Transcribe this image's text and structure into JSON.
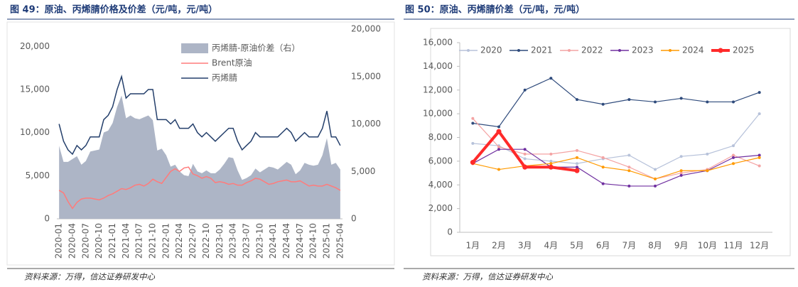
{
  "chart_data": [
    {
      "type": "line",
      "title": "图 49：原油、丙烯腈价格及价差（元/吨，元/吨）",
      "source": "资料来源：万得，信达证券研发中心",
      "categories": [
        "2020-01",
        null,
        null,
        "2020-04",
        null,
        null,
        "2020-07",
        null,
        null,
        "2020-10",
        null,
        null,
        "2021-01",
        null,
        null,
        "2021-04",
        null,
        null,
        "2021-07",
        null,
        null,
        "2021-10",
        null,
        null,
        "2022-01",
        null,
        null,
        "2022-04",
        null,
        null,
        "2022-07",
        null,
        null,
        "2022-10",
        null,
        null,
        "2023-01",
        null,
        null,
        "2023-04",
        null,
        null,
        "2023-07",
        null,
        null,
        "2023-10",
        null,
        null,
        "2024-01",
        null,
        null,
        "2024-04",
        null,
        null,
        "2024-07",
        null,
        null,
        "2024-10",
        null,
        null,
        "2025-01",
        null,
        null,
        "2025-04"
      ],
      "ylim": [
        0,
        22000
      ],
      "yticks": [
        0,
        {
          "value": 5000,
          "label": "5,000"
        },
        {
          "value": 10000,
          "label": "10,000"
        },
        {
          "value": 15000,
          "label": "15,000"
        },
        {
          "value": 20000,
          "label": "20,000"
        }
      ],
      "y2lim": [
        0,
        20000
      ],
      "y2ticks": [
        0,
        {
          "value": 5000,
          "label": "5,000"
        },
        {
          "value": 10000,
          "label": "10,000"
        },
        {
          "value": 15000,
          "label": "15,000"
        },
        {
          "value": 20000,
          "label": "20,000"
        }
      ],
      "legend": "upper right",
      "series": [
        {
          "name": "丙烯腈-原油价差（右）",
          "kind": "area",
          "axis": "y2",
          "color": "#adb5c6",
          "values": [
            7700,
            6000,
            6000,
            6300,
            6600,
            5700,
            6100,
            7100,
            7200,
            7300,
            9100,
            9300,
            10100,
            11800,
            13000,
            10600,
            10900,
            10600,
            10500,
            10700,
            10900,
            10400,
            7200,
            7400,
            6700,
            5500,
            5700,
            5000,
            4600,
            4500,
            5800,
            5000,
            4800,
            5100,
            4800,
            4800,
            5200,
            5800,
            6500,
            6400,
            5100,
            4100,
            4300,
            4600,
            5300,
            4900,
            5200,
            5500,
            5400,
            5200,
            5600,
            6000,
            5700,
            4700,
            5100,
            5900,
            5700,
            5600,
            5700,
            6700,
            8500,
            5700,
            5900,
            5200
          ]
        },
        {
          "name": "Brent原油",
          "color": "#ff7b7b",
          "values": [
            3300,
            3000,
            2000,
            1200,
            1900,
            2300,
            2400,
            2400,
            2300,
            2200,
            2400,
            2700,
            2900,
            3200,
            3500,
            3400,
            3600,
            3900,
            4000,
            3800,
            4100,
            4600,
            4300,
            4100,
            4800,
            5500,
            5800,
            5500,
            5900,
            6000,
            5200,
            5000,
            4700,
            4900,
            4700,
            4200,
            4300,
            4200,
            4000,
            4100,
            3900,
            3900,
            4200,
            4400,
            4700,
            4600,
            4300,
            4000,
            4100,
            4300,
            4400,
            4500,
            4300,
            4300,
            4400,
            4100,
            3800,
            3900,
            3800,
            3800,
            4000,
            3800,
            3600,
            3300
          ]
        },
        {
          "name": "丙烯腈",
          "color": "#243f6b",
          "values": [
            11000,
            9000,
            8000,
            7500,
            8500,
            8000,
            8500,
            9500,
            9500,
            9500,
            11500,
            12000,
            13000,
            15000,
            16500,
            14000,
            14500,
            14500,
            14500,
            14500,
            15000,
            15000,
            11500,
            11500,
            11500,
            11000,
            11500,
            10500,
            10500,
            10500,
            11000,
            10000,
            9500,
            10000,
            9500,
            9000,
            9500,
            10000,
            10500,
            10500,
            9000,
            8000,
            8500,
            9000,
            10000,
            9500,
            9500,
            9500,
            9500,
            9500,
            10000,
            10500,
            10000,
            9000,
            9500,
            10000,
            9500,
            9500,
            9500,
            10500,
            12500,
            9500,
            9500,
            8500
          ]
        }
      ]
    },
    {
      "type": "line",
      "title": "图 50：原油、丙烯腈价差（元/吨，元/吨）",
      "source": "资料来源：万得，信达证券研发中心",
      "categories": [
        "1月",
        "2月",
        "3月",
        "4月",
        "5月",
        "6月",
        "7月",
        "8月",
        "9月",
        "10月",
        "11月",
        "12月"
      ],
      "ylim": [
        0,
        16000
      ],
      "yticks": [
        0,
        {
          "value": 2000,
          "label": "2,000"
        },
        {
          "value": 4000,
          "label": "4,000"
        },
        {
          "value": 6000,
          "label": "6,000"
        },
        {
          "value": 8000,
          "label": "8,000"
        },
        {
          "value": 10000,
          "label": "10,000"
        },
        {
          "value": 12000,
          "label": "12,000"
        },
        {
          "value": 14000,
          "label": "14,000"
        },
        {
          "value": 16000,
          "label": "16,000"
        }
      ],
      "legend": "top",
      "series": [
        {
          "name": "2020",
          "color": "#b7c2da",
          "values": [
            7500,
            7300,
            6200,
            6000,
            5800,
            6200,
            6500,
            5300,
            6400,
            6600,
            7300,
            10000
          ]
        },
        {
          "name": "2021",
          "color": "#2f4b7c",
          "values": [
            9200,
            8900,
            12000,
            13000,
            11200,
            10800,
            11200,
            11000,
            11300,
            11000,
            11000,
            11800
          ]
        },
        {
          "name": "2022",
          "color": "#f4a3a3",
          "values": [
            9600,
            7200,
            6600,
            6600,
            6900,
            6300,
            5500,
            4500,
            5000,
            5300,
            6500,
            5600
          ]
        },
        {
          "name": "2023",
          "color": "#7030a0",
          "values": [
            5800,
            7000,
            7000,
            5500,
            5500,
            4100,
            3900,
            3900,
            4800,
            5200,
            6300,
            6500
          ]
        },
        {
          "name": "2024",
          "color": "#ff9a00",
          "values": [
            5800,
            5300,
            5600,
            5800,
            6300,
            5500,
            5200,
            4500,
            5200,
            5200,
            5800,
            6300
          ]
        },
        {
          "name": "2025",
          "color": "#ff2a2a",
          "values": [
            5900,
            8500,
            5500,
            5500,
            5200,
            null,
            null,
            null,
            null,
            null,
            null,
            null
          ]
        }
      ]
    }
  ]
}
